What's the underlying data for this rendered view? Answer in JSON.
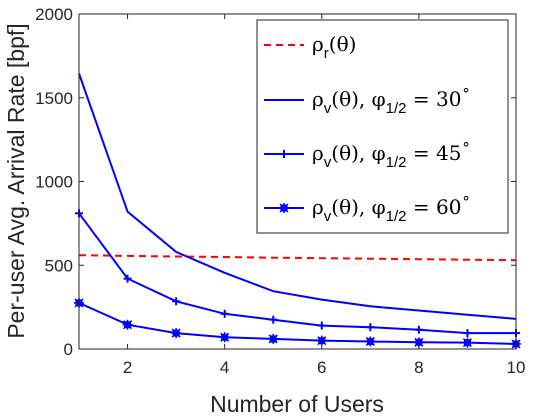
{
  "chart_data": {
    "type": "line",
    "xlabel": "Number of Users",
    "ylabel": "Per-user Avg. Arrival Rate [bpf]",
    "xlim": [
      1,
      10
    ],
    "ylim": [
      0,
      2000
    ],
    "xticks": [
      2,
      4,
      6,
      8,
      10
    ],
    "yticks": [
      0,
      500,
      1000,
      1500,
      2000
    ],
    "grid": false,
    "legend_position": "top-right",
    "x": [
      1,
      2,
      3,
      4,
      5,
      6,
      7,
      8,
      9,
      10
    ],
    "series": [
      {
        "name": "ρr(θ)",
        "name_main": "ρ",
        "name_sub": "r",
        "name_tail": "(θ)",
        "name_rest": "",
        "name_degree": "",
        "color": "#ff0000",
        "style": "dashed",
        "marker": "none",
        "values": [
          560,
          556,
          552,
          549,
          545,
          542,
          539,
          536,
          533,
          530
        ]
      },
      {
        "name": "ρv(θ), φ1/2 = 30°",
        "name_main": "ρ",
        "name_sub": "v",
        "name_tail": "(θ), φ",
        "name_sub2": "1/2",
        "name_rest": " = 30",
        "name_degree": "∘",
        "color": "#0000ff",
        "style": "solid",
        "marker": "none",
        "values": [
          1645,
          820,
          580,
          455,
          345,
          295,
          255,
          230,
          205,
          180
        ]
      },
      {
        "name": "ρv(θ), φ1/2 = 45°",
        "name_main": "ρ",
        "name_sub": "v",
        "name_tail": "(θ), φ",
        "name_sub2": "1/2",
        "name_rest": " = 45",
        "name_degree": "∘",
        "color": "#0000ff",
        "style": "solid",
        "marker": "plus",
        "values": [
          810,
          420,
          285,
          210,
          175,
          140,
          130,
          115,
          95,
          95
        ]
      },
      {
        "name": "ρv(θ), φ1/2 = 60°",
        "name_main": "ρ",
        "name_sub": "v",
        "name_tail": "(θ), φ",
        "name_sub2": "1/2",
        "name_rest": " = 60",
        "name_degree": "∘",
        "color": "#0000ff",
        "style": "solid",
        "marker": "asterisk-square",
        "values": [
          275,
          145,
          95,
          70,
          60,
          50,
          45,
          40,
          38,
          30
        ]
      }
    ]
  }
}
